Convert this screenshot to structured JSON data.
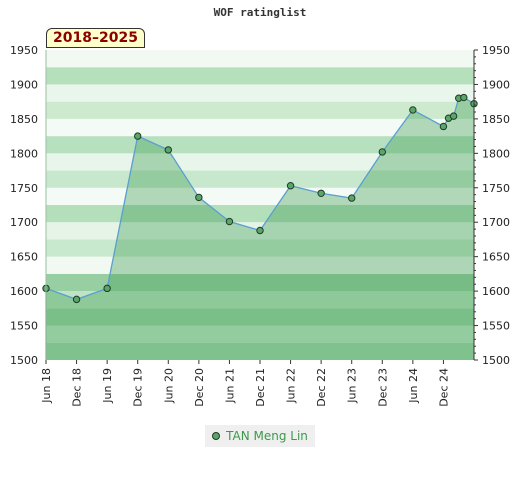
{
  "chart_data": {
    "type": "area",
    "title": "WOF ratinglist",
    "period_label": "2018–2025",
    "ylim": [
      1500,
      1950
    ],
    "yticks": [
      1500,
      1550,
      1600,
      1650,
      1700,
      1750,
      1800,
      1850,
      1900,
      1950
    ],
    "xlim": [
      "2018-06",
      "2025-06"
    ],
    "xtick_labels": [
      "Jun 18",
      "Dec 18",
      "Jun 19",
      "Dec 19",
      "Jun 20",
      "Dec 20",
      "Jun 21",
      "Dec 21",
      "Jun 22",
      "Dec 22",
      "Jun 23",
      "Dec 23",
      "Jun 24",
      "Dec 24"
    ],
    "grid": true,
    "legend_position": "bottom-center",
    "series": [
      {
        "name": "TAN Meng Lin",
        "color": "#5aa66a",
        "points": [
          {
            "x": "2018-06",
            "y": 1604
          },
          {
            "x": "2018-12",
            "y": 1588
          },
          {
            "x": "2019-06",
            "y": 1604
          },
          {
            "x": "2019-12",
            "y": 1825
          },
          {
            "x": "2020-06",
            "y": 1805
          },
          {
            "x": "2020-12",
            "y": 1736
          },
          {
            "x": "2021-06",
            "y": 1701
          },
          {
            "x": "2021-12",
            "y": 1688
          },
          {
            "x": "2022-06",
            "y": 1753
          },
          {
            "x": "2022-12",
            "y": 1742
          },
          {
            "x": "2023-06",
            "y": 1735
          },
          {
            "x": "2023-12",
            "y": 1802
          },
          {
            "x": "2024-06",
            "y": 1863
          },
          {
            "x": "2024-12",
            "y": 1839
          },
          {
            "x": "2025-01",
            "y": 1851
          },
          {
            "x": "2025-02",
            "y": 1854
          },
          {
            "x": "2025-03",
            "y": 1880
          },
          {
            "x": "2025-04",
            "y": 1881
          },
          {
            "x": "2025-06",
            "y": 1872
          }
        ]
      }
    ]
  }
}
